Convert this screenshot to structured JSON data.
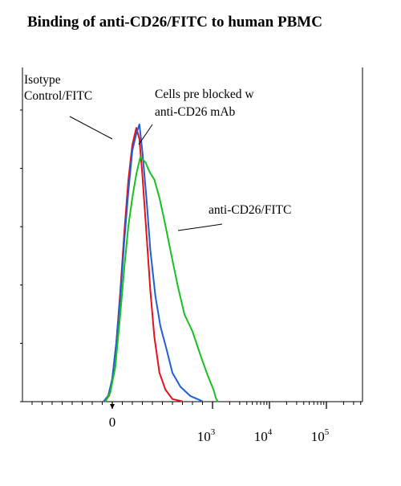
{
  "chart_data": {
    "type": "line",
    "title": "Binding of anti-CD26/FITC to human PBMC",
    "xlabel": "",
    "ylabel": "",
    "x_scale": "biexponential",
    "x_tick_labels": [
      {
        "label": "0",
        "sup": ""
      },
      {
        "label": "10",
        "sup": "3"
      },
      {
        "label": "10",
        "sup": "4"
      },
      {
        "label": "10",
        "sup": "5"
      }
    ],
    "xlim": [
      -200,
      250000
    ],
    "ylim": [
      0,
      100
    ],
    "grid": false,
    "legend": "none",
    "series": [
      {
        "color": "#e8101c",
        "x": [
          -80,
          -30,
          0,
          40,
          80,
          120,
          160,
          200,
          240,
          270,
          300,
          340,
          380,
          420,
          470,
          530,
          600,
          700
        ],
        "y": [
          0,
          2,
          8,
          20,
          38,
          58,
          76,
          88,
          94,
          90,
          78,
          58,
          38,
          22,
          10,
          4,
          1,
          0
        ]
      },
      {
        "color": "#1f5fd6",
        "x": [
          -90,
          -40,
          0,
          40,
          80,
          120,
          160,
          200,
          240,
          270,
          300,
          340,
          380,
          430,
          480,
          540,
          600,
          680,
          780,
          900
        ],
        "y": [
          0,
          2,
          8,
          20,
          36,
          55,
          72,
          86,
          92,
          95,
          86,
          70,
          52,
          36,
          26,
          18,
          10,
          5,
          2,
          0
        ]
      },
      {
        "color": "#18c020",
        "x": [
          -70,
          -20,
          30,
          80,
          120,
          160,
          200,
          240,
          280,
          330,
          370,
          420,
          470,
          520,
          580,
          650,
          720,
          800,
          880,
          950,
          1050,
          1150,
          1250
        ],
        "y": [
          0,
          3,
          12,
          30,
          46,
          60,
          70,
          78,
          84,
          82,
          79,
          76,
          70,
          62,
          52,
          40,
          30,
          24,
          16,
          9,
          4,
          1,
          0
        ]
      }
    ],
    "annotations": [
      {
        "name": "annotation-isotype",
        "lines": [
          "Isotype",
          "Control/FITC"
        ]
      },
      {
        "name": "annotation-preblocked",
        "lines": [
          "Cells pre blocked w",
          "anti-CD26 mAb"
        ]
      },
      {
        "name": "annotation-anti-cd26",
        "lines": [
          "anti-CD26/FITC"
        ]
      }
    ]
  }
}
